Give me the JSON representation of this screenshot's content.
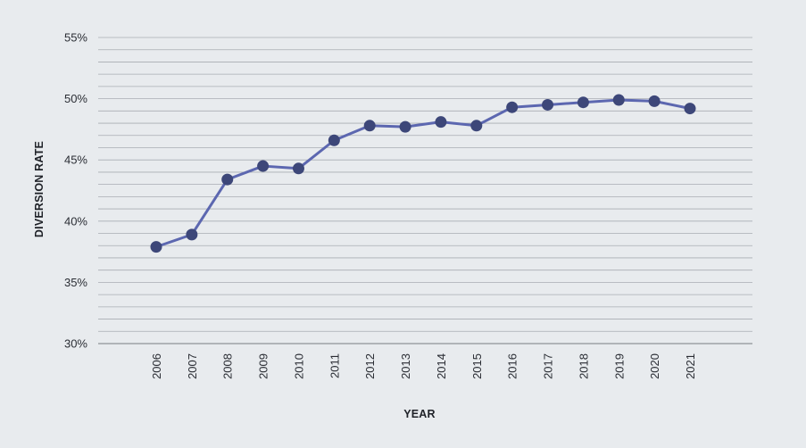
{
  "chart_data": {
    "type": "line",
    "title": "",
    "xlabel": "YEAR",
    "ylabel": "DIVERSION RATE",
    "ylim": [
      30,
      55
    ],
    "y_major_ticks": [
      30,
      35,
      40,
      45,
      50,
      55
    ],
    "y_tick_labels": [
      "30%",
      "35%",
      "40%",
      "45%",
      "50%",
      "55%"
    ],
    "y_minor_step": 1,
    "grid": true,
    "legend": "none",
    "categories": [
      "2006",
      "2007",
      "2008",
      "2009",
      "2010",
      "2011",
      "2012",
      "2013",
      "2014",
      "2015",
      "2016",
      "2017",
      "2018",
      "2019",
      "2020",
      "2021"
    ],
    "series": [
      {
        "values": [
          37.9,
          38.9,
          43.4,
          44.5,
          44.3,
          46.6,
          47.8,
          47.7,
          48.1,
          47.8,
          49.3,
          49.5,
          49.7,
          49.9,
          49.8,
          49.2
        ]
      }
    ],
    "colors": {
      "line": "#5c67b0",
      "marker": "#3d4779",
      "grid": "#a9adb3",
      "axis": "#8e9399",
      "background": "#e8ebee"
    }
  }
}
